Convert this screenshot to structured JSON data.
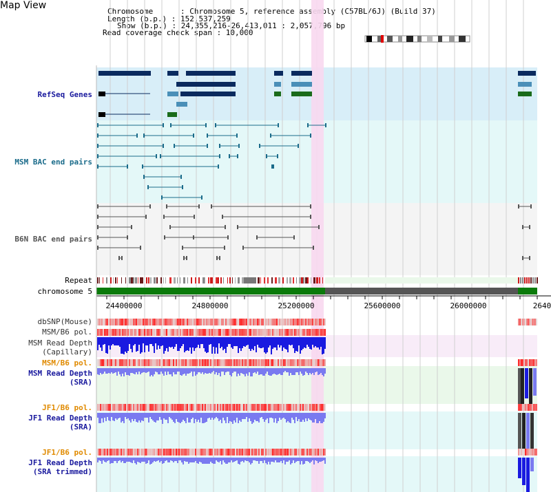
{
  "view_title": "Map View",
  "info": {
    "chromosome": "Chromosome      : Chromosome 5, reference assembly (C57BL/6J) (Build 37)",
    "length": "Length (b.p.) : 152,537,259",
    "show": "Show (b.p.) : 24,355,216-26,413,011 : 2,057,796 bp",
    "span": "Read coverage check span : 10,000"
  },
  "tracks": {
    "refseq": "RefSeq Genes",
    "msm_bac": "MSM BAC end pairs",
    "b6n_bac": "B6N BAC end pairs",
    "repeat": "Repeat",
    "chromosome": "chromosome 5",
    "dbsnp": "dbSNP(Mouse)",
    "msm_b6_pol_1": "MSM/B6 pol.",
    "msm_depth_cap_1": "MSM Read Depth",
    "msm_depth_cap_2": "(Capillary)",
    "msm_b6_pol_2": "MSM/B6 pol.",
    "msm_depth_sra_1": "MSM Read Depth",
    "msm_depth_sra_2": "(SRA)",
    "jf1_b6_pol_1": "JF1/B6 pol.",
    "jf1_depth_sra_1": "JF1 Read Depth",
    "jf1_depth_sra_2": "(SRA)",
    "jf1_b6_pol_2": "JF1/B6 pol.",
    "jf1_depth_trim_1": "JF1 Read Depth",
    "jf1_depth_trim_2": "(SRA trimmed)"
  },
  "axis_ticks": [
    "24400000",
    "24800000",
    "25200000",
    "25600000",
    "26000000",
    "2640"
  ],
  "colors": {
    "gene_dark": "#0a2a5e",
    "gene_teal": "#4a8fb8",
    "gene_green": "#1a6b1a",
    "label_blue": "#1a1a9e",
    "label_orange": "#e08a00",
    "label_teal": "#1a6b8a",
    "highlight": "#f8d8f0"
  }
}
